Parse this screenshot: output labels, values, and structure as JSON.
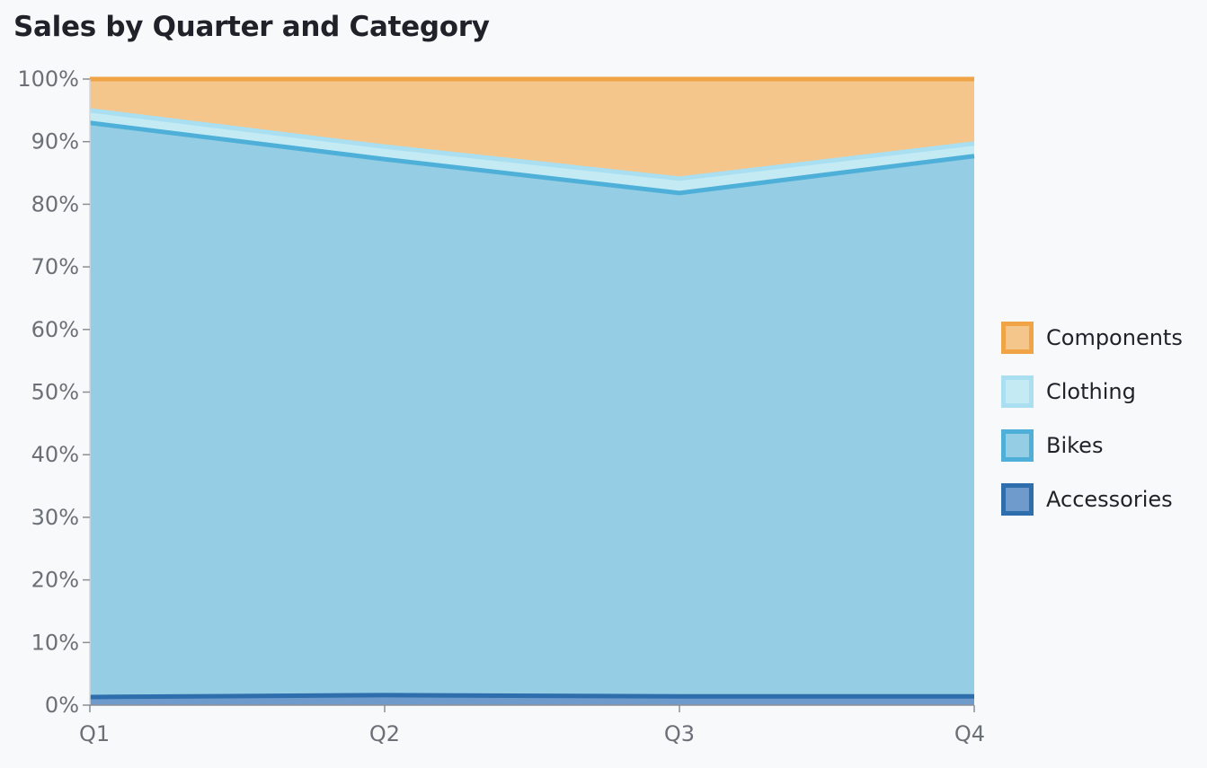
{
  "title": "Sales by Quarter and Category",
  "chart_data": {
    "type": "area",
    "stacked": true,
    "normalized": true,
    "title": "Sales by Quarter and Category",
    "categories": [
      "Q1",
      "Q2",
      "Q3",
      "Q4"
    ],
    "y_ticks": [
      "0%",
      "10%",
      "20%",
      "30%",
      "40%",
      "50%",
      "60%",
      "70%",
      "80%",
      "90%",
      "100%"
    ],
    "ylim": [
      0,
      100
    ],
    "legend_position": "right",
    "series": [
      {
        "name": "Accessories",
        "values": [
          1.3,
          1.6,
          1.4,
          1.4
        ],
        "line_color": "#2e6eac",
        "fill_color": "#6f9bcc"
      },
      {
        "name": "Bikes",
        "values": [
          91.7,
          85.6,
          80.4,
          86.3
        ],
        "line_color": "#4eb0d8",
        "fill_color": "#95cde4"
      },
      {
        "name": "Clothing",
        "values": [
          2.0,
          2.0,
          2.3,
          2.0
        ],
        "line_color": "#a9dff0",
        "fill_color": "#c4eaf4"
      },
      {
        "name": "Components",
        "values": [
          5.0,
          10.8,
          15.9,
          10.3
        ],
        "line_color": "#f0a445",
        "fill_color": "#f5c68c"
      }
    ],
    "grid": false
  },
  "legend": {
    "items": [
      {
        "label": "Components",
        "line_color": "#f0a445",
        "fill_color": "#f5c68c"
      },
      {
        "label": "Clothing",
        "line_color": "#a9dff0",
        "fill_color": "#c4eaf4"
      },
      {
        "label": "Bikes",
        "line_color": "#4eb0d8",
        "fill_color": "#95cde4"
      },
      {
        "label": "Accessories",
        "line_color": "#2e6eac",
        "fill_color": "#6f9bcc"
      }
    ]
  }
}
